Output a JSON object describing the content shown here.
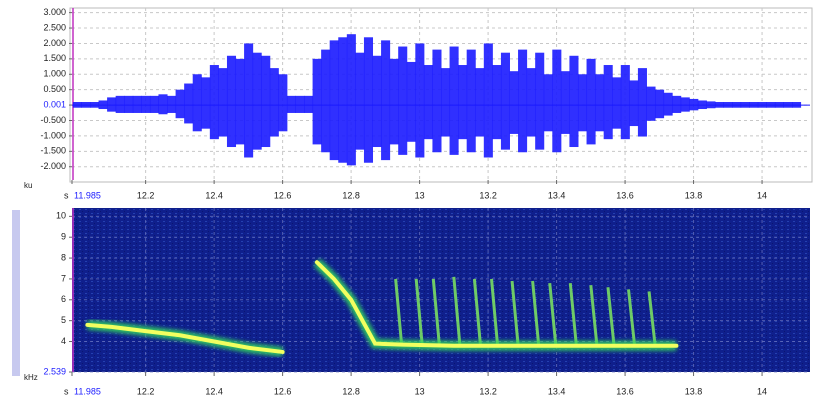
{
  "chart_data": [
    {
      "type": "waveform",
      "ylabel": "ku",
      "xlabel": "s",
      "color": "#1a1aff",
      "grid": true,
      "xlim": [
        11.985,
        14.14
      ],
      "ylim": [
        -2.43,
        3.15
      ],
      "yticks": [
        {
          "value": 3,
          "label": "3.000"
        },
        {
          "value": 2.5,
          "label": "2.500"
        },
        {
          "value": 2,
          "label": "2.000"
        },
        {
          "value": 1.5,
          "label": "1.500"
        },
        {
          "value": 1,
          "label": "1.000"
        },
        {
          "value": 0.5,
          "label": "0.500"
        },
        {
          "value": 0.001,
          "label": "0.001",
          "color": "#2020ff"
        },
        {
          "value": -0.5,
          "label": "-0.500"
        },
        {
          "value": -1,
          "label": "-1.000"
        },
        {
          "value": -1.5,
          "label": "-1.500"
        },
        {
          "value": -2,
          "label": "-2.000"
        }
      ],
      "xticks": [
        {
          "value": 11.985,
          "label": "11.985",
          "color": "#2020ff"
        },
        12.2,
        12.4,
        12.6,
        12.8,
        13,
        13.2,
        13.4,
        13.6,
        13.8,
        14
      ],
      "x": [
        12.0,
        12.025,
        12.05,
        12.075,
        12.1,
        12.125,
        12.15,
        12.175,
        12.2,
        12.225,
        12.25,
        12.275,
        12.3,
        12.325,
        12.35,
        12.375,
        12.4,
        12.425,
        12.45,
        12.475,
        12.5,
        12.525,
        12.55,
        12.575,
        12.6,
        12.625,
        12.65,
        12.675,
        12.7,
        12.725,
        12.75,
        12.775,
        12.8,
        12.825,
        12.85,
        12.875,
        12.9,
        12.925,
        12.95,
        12.975,
        13.0,
        13.025,
        13.05,
        13.075,
        13.1,
        13.125,
        13.15,
        13.175,
        13.2,
        13.225,
        13.25,
        13.275,
        13.3,
        13.325,
        13.35,
        13.375,
        13.4,
        13.425,
        13.45,
        13.475,
        13.5,
        13.525,
        13.55,
        13.575,
        13.6,
        13.625,
        13.65,
        13.675,
        13.7,
        13.725,
        13.75,
        13.775,
        13.8,
        13.825,
        13.85,
        13.875,
        13.9,
        13.925,
        13.95,
        13.975,
        14.0,
        14.025,
        14.05,
        14.075,
        14.1
      ],
      "values": [
        0.1,
        0.1,
        0.1,
        0.15,
        0.25,
        0.3,
        0.3,
        0.3,
        0.3,
        0.3,
        0.35,
        0.3,
        0.5,
        0.7,
        1.0,
        0.9,
        1.3,
        1.2,
        1.6,
        1.5,
        2.0,
        1.7,
        1.6,
        1.2,
        1.0,
        0.3,
        0.3,
        0.3,
        1.5,
        1.8,
        2.1,
        2.2,
        2.3,
        1.7,
        2.2,
        1.6,
        2.1,
        1.5,
        1.9,
        1.4,
        2.0,
        1.3,
        1.8,
        1.2,
        1.9,
        1.3,
        1.8,
        1.2,
        2.0,
        1.3,
        1.7,
        1.1,
        1.8,
        1.2,
        1.7,
        1.0,
        1.8,
        1.1,
        1.6,
        1.0,
        1.5,
        1.0,
        1.3,
        0.9,
        1.3,
        0.8,
        1.2,
        0.6,
        0.5,
        0.4,
        0.3,
        0.25,
        0.2,
        0.15,
        0.12,
        0.1,
        0.1,
        0.1,
        0.1,
        0.1,
        0.1,
        0.1,
        0.1,
        0.1,
        0.1
      ]
    },
    {
      "type": "spectrogram",
      "ylabel": "kHz",
      "xlabel": "s",
      "color": "#f2ff60",
      "grid": true,
      "xlim": [
        11.985,
        14.14
      ],
      "ylim": [
        2.539,
        10.4
      ],
      "yticks": [
        {
          "value": 2.539,
          "label": "2.539",
          "color": "#2020ff"
        },
        4,
        5,
        6,
        7,
        8,
        9,
        10
      ],
      "xticks": [
        {
          "value": 11.985,
          "label": "11.985",
          "color": "#2020ff"
        },
        12.2,
        12.4,
        12.6,
        12.8,
        13,
        13.2,
        13.4,
        13.6,
        13.8,
        14
      ],
      "x": [
        12.03,
        12.1,
        12.2,
        12.3,
        12.4,
        12.5,
        12.6,
        12.65,
        12.7,
        12.75,
        12.8,
        12.85,
        12.87,
        12.95,
        13.1,
        13.3,
        13.5,
        13.7,
        13.75
      ],
      "values": [
        4.8,
        4.7,
        4.5,
        4.3,
        4.0,
        3.7,
        3.5,
        null,
        7.8,
        7.0,
        6.0,
        4.5,
        3.9,
        3.85,
        3.8,
        3.8,
        3.8,
        3.8,
        3.8
      ],
      "pulses": {
        "x": [
          12.93,
          12.99,
          13.04,
          13.1,
          13.16,
          13.21,
          13.27,
          13.33,
          13.38,
          13.44,
          13.5,
          13.55,
          13.61,
          13.67
        ],
        "values": [
          7.0,
          7.0,
          7.0,
          7.1,
          7.0,
          7.0,
          6.9,
          6.9,
          6.8,
          6.8,
          6.7,
          6.6,
          6.5,
          6.4
        ]
      }
    }
  ]
}
